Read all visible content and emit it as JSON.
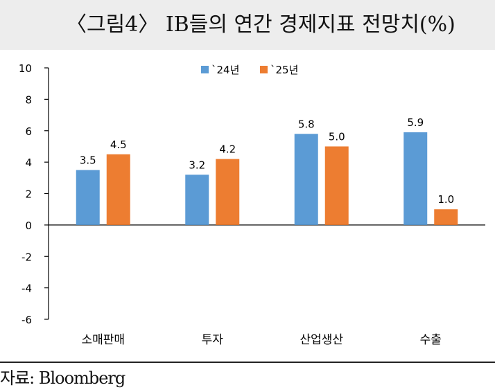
{
  "header": {
    "title": "〈그림4〉 IB들의 연간 경제지표 전망치(%)"
  },
  "footer": {
    "source": "자료: Bloomberg"
  },
  "chart_data": {
    "type": "bar",
    "categories": [
      "소매판매",
      "투자",
      "산업생산",
      "수출"
    ],
    "series": [
      {
        "name": "`24년",
        "values": [
          3.5,
          3.2,
          5.8,
          5.9
        ],
        "color": "#5b9bd5"
      },
      {
        "name": "`25년",
        "values": [
          4.5,
          4.2,
          5.0,
          1.0
        ],
        "color": "#ed7d31"
      }
    ],
    "data_labels": [
      [
        "3.5",
        "3.2",
        "5.8",
        "5.9"
      ],
      [
        "4.5",
        "4.2",
        "5.0",
        "1.0"
      ]
    ],
    "title": "",
    "xlabel": "",
    "ylabel": "",
    "ylim": [
      -6,
      10
    ],
    "yticks": [
      10,
      8,
      6,
      4,
      2,
      0,
      -2,
      -4,
      -6
    ],
    "grid": false,
    "legend_position": "top-center"
  }
}
